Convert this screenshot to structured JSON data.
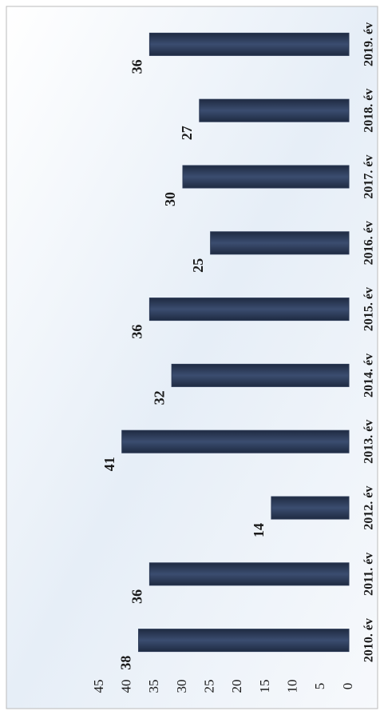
{
  "chart_data": {
    "type": "bar",
    "categories": [
      "2010. év",
      "2011. év",
      "2012. év",
      "2013. év",
      "2014. év",
      "2015. év",
      "2016. év",
      "2017. év",
      "2018. év",
      "2019. év"
    ],
    "values": [
      38,
      36,
      14,
      41,
      32,
      36,
      25,
      30,
      27,
      36
    ],
    "color": "#2c3a56",
    "ylim": [
      0,
      45
    ],
    "yticks": [
      0,
      5,
      10,
      15,
      20,
      25,
      30,
      35,
      40,
      45
    ],
    "grid": false
  }
}
